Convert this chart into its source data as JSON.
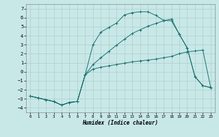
{
  "xlabel": "Humidex (Indice chaleur)",
  "xlim": [
    -0.5,
    23.5
  ],
  "ylim": [
    -4.5,
    7.5
  ],
  "xticks": [
    0,
    1,
    2,
    3,
    4,
    5,
    6,
    7,
    8,
    9,
    10,
    11,
    12,
    13,
    14,
    15,
    16,
    17,
    18,
    19,
    20,
    21,
    22,
    23
  ],
  "yticks": [
    -4,
    -3,
    -2,
    -1,
    0,
    1,
    2,
    3,
    4,
    5,
    6,
    7
  ],
  "bg_color": "#c8e8e8",
  "grid_color": "#b0cccc",
  "line_color": "#1a6e6e",
  "line1_x": [
    0,
    1,
    2,
    3,
    4,
    5,
    6,
    7,
    8,
    9,
    10,
    11,
    12,
    13,
    14,
    15,
    16,
    17,
    18,
    19,
    20,
    21,
    22,
    23
  ],
  "line1_y": [
    -2.7,
    -2.9,
    -3.1,
    -3.3,
    -3.7,
    -3.4,
    -3.3,
    -0.35,
    3.0,
    4.4,
    4.9,
    5.4,
    6.3,
    6.55,
    6.65,
    6.65,
    6.25,
    5.7,
    5.65,
    4.15,
    2.65,
    -0.55,
    -1.55,
    -1.75
  ],
  "line2_x": [
    0,
    1,
    2,
    3,
    4,
    5,
    6,
    7,
    8,
    9,
    10,
    11,
    12,
    13,
    14,
    15,
    16,
    17,
    18,
    19,
    20,
    21,
    22,
    23
  ],
  "line2_y": [
    -2.7,
    -2.9,
    -3.1,
    -3.3,
    -3.7,
    -3.4,
    -3.3,
    -0.35,
    0.8,
    1.55,
    2.25,
    2.95,
    3.6,
    4.25,
    4.65,
    5.05,
    5.35,
    5.65,
    5.85,
    4.15,
    2.65,
    -0.55,
    -1.55,
    -1.75
  ],
  "line3_x": [
    0,
    1,
    2,
    3,
    4,
    5,
    6,
    7,
    8,
    9,
    10,
    11,
    12,
    13,
    14,
    15,
    16,
    17,
    18,
    19,
    20,
    21,
    22,
    23
  ],
  "line3_y": [
    -2.7,
    -2.9,
    -3.1,
    -3.3,
    -3.7,
    -3.4,
    -3.3,
    -0.35,
    0.3,
    0.5,
    0.65,
    0.8,
    0.95,
    1.1,
    1.2,
    1.3,
    1.4,
    1.55,
    1.7,
    2.0,
    2.2,
    2.3,
    2.4,
    -1.75
  ]
}
